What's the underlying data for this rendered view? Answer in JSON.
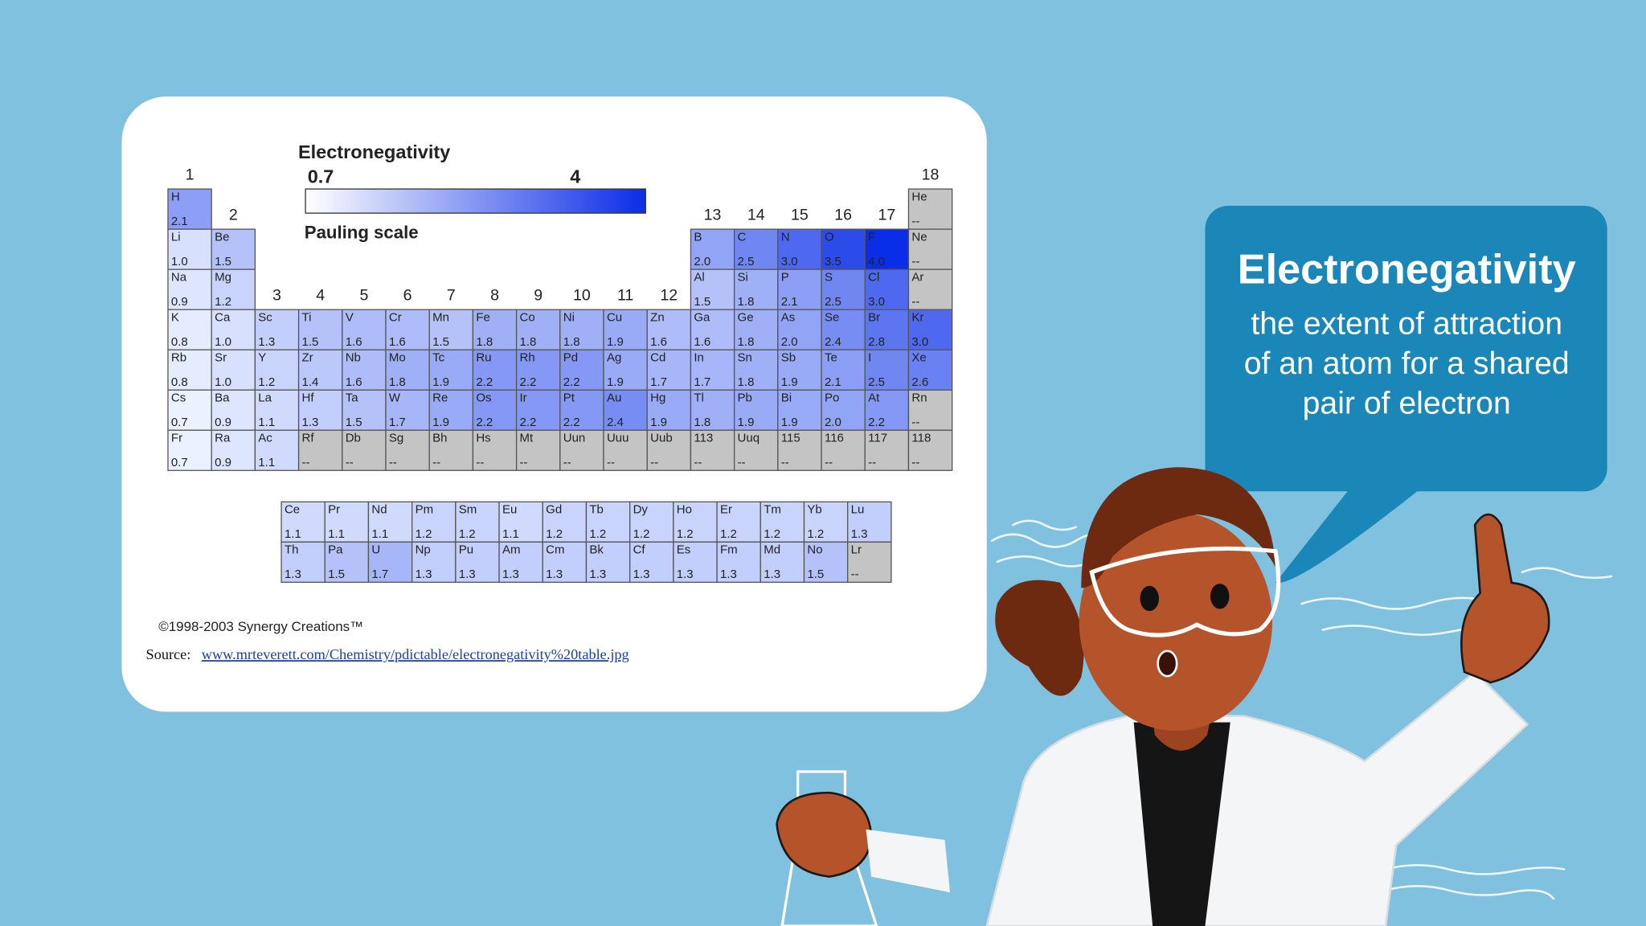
{
  "table_figure": {
    "legend": {
      "title": "Electronegativity",
      "min": 0.7,
      "max": 4,
      "scale": "Pauling scale"
    },
    "groups": [
      1,
      2,
      3,
      4,
      5,
      6,
      7,
      8,
      9,
      10,
      11,
      12,
      13,
      14,
      15,
      16,
      17,
      18
    ],
    "main_rows": [
      [
        {
          "symbol": "H",
          "value": "2.1"
        },
        {
          "symbol": "He",
          "value": "--"
        }
      ],
      [
        {
          "symbol": "Li",
          "value": "1.0"
        },
        {
          "symbol": "Be",
          "value": "1.5"
        },
        {
          "symbol": "B",
          "value": "2.0"
        },
        {
          "symbol": "C",
          "value": "2.5"
        },
        {
          "symbol": "N",
          "value": "3.0"
        },
        {
          "symbol": "O",
          "value": "3.5"
        },
        {
          "symbol": "F",
          "value": "4.0"
        },
        {
          "symbol": "Ne",
          "value": "--"
        }
      ],
      [
        {
          "symbol": "Na",
          "value": "0.9"
        },
        {
          "symbol": "Mg",
          "value": "1.2"
        },
        {
          "symbol": "Al",
          "value": "1.5"
        },
        {
          "symbol": "Si",
          "value": "1.8"
        },
        {
          "symbol": "P",
          "value": "2.1"
        },
        {
          "symbol": "S",
          "value": "2.5"
        },
        {
          "symbol": "Cl",
          "value": "3.0"
        },
        {
          "symbol": "Ar",
          "value": "--"
        }
      ],
      [
        {
          "symbol": "K",
          "value": "0.8"
        },
        {
          "symbol": "Ca",
          "value": "1.0"
        },
        {
          "symbol": "Sc",
          "value": "1.3"
        },
        {
          "symbol": "Ti",
          "value": "1.5"
        },
        {
          "symbol": "V",
          "value": "1.6"
        },
        {
          "symbol": "Cr",
          "value": "1.6"
        },
        {
          "symbol": "Mn",
          "value": "1.5"
        },
        {
          "symbol": "Fe",
          "value": "1.8"
        },
        {
          "symbol": "Co",
          "value": "1.8"
        },
        {
          "symbol": "Ni",
          "value": "1.8"
        },
        {
          "symbol": "Cu",
          "value": "1.9"
        },
        {
          "symbol": "Zn",
          "value": "1.6"
        },
        {
          "symbol": "Ga",
          "value": "1.6"
        },
        {
          "symbol": "Ge",
          "value": "1.8"
        },
        {
          "symbol": "As",
          "value": "2.0"
        },
        {
          "symbol": "Se",
          "value": "2.4"
        },
        {
          "symbol": "Br",
          "value": "2.8"
        },
        {
          "symbol": "Kr",
          "value": "3.0"
        }
      ],
      [
        {
          "symbol": "Rb",
          "value": "0.8"
        },
        {
          "symbol": "Sr",
          "value": "1.0"
        },
        {
          "symbol": "Y",
          "value": "1.2"
        },
        {
          "symbol": "Zr",
          "value": "1.4"
        },
        {
          "symbol": "Nb",
          "value": "1.6"
        },
        {
          "symbol": "Mo",
          "value": "1.8"
        },
        {
          "symbol": "Tc",
          "value": "1.9"
        },
        {
          "symbol": "Ru",
          "value": "2.2"
        },
        {
          "symbol": "Rh",
          "value": "2.2"
        },
        {
          "symbol": "Pd",
          "value": "2.2"
        },
        {
          "symbol": "Ag",
          "value": "1.9"
        },
        {
          "symbol": "Cd",
          "value": "1.7"
        },
        {
          "symbol": "In",
          "value": "1.7"
        },
        {
          "symbol": "Sn",
          "value": "1.8"
        },
        {
          "symbol": "Sb",
          "value": "1.9"
        },
        {
          "symbol": "Te",
          "value": "2.1"
        },
        {
          "symbol": "I",
          "value": "2.5"
        },
        {
          "symbol": "Xe",
          "value": "2.6"
        }
      ],
      [
        {
          "symbol": "Cs",
          "value": "0.7"
        },
        {
          "symbol": "Ba",
          "value": "0.9"
        },
        {
          "symbol": "La",
          "value": "1.1"
        },
        {
          "symbol": "Hf",
          "value": "1.3"
        },
        {
          "symbol": "Ta",
          "value": "1.5"
        },
        {
          "symbol": "W",
          "value": "1.7"
        },
        {
          "symbol": "Re",
          "value": "1.9"
        },
        {
          "symbol": "Os",
          "value": "2.2"
        },
        {
          "symbol": "Ir",
          "value": "2.2"
        },
        {
          "symbol": "Pt",
          "value": "2.2"
        },
        {
          "symbol": "Au",
          "value": "2.4"
        },
        {
          "symbol": "Hg",
          "value": "1.9"
        },
        {
          "symbol": "Tl",
          "value": "1.8"
        },
        {
          "symbol": "Pb",
          "value": "1.9"
        },
        {
          "symbol": "Bi",
          "value": "1.9"
        },
        {
          "symbol": "Po",
          "value": "2.0"
        },
        {
          "symbol": "At",
          "value": "2.2"
        },
        {
          "symbol": "Rn",
          "value": "--"
        }
      ],
      [
        {
          "symbol": "Fr",
          "value": "0.7"
        },
        {
          "symbol": "Ra",
          "value": "0.9"
        },
        {
          "symbol": "Ac",
          "value": "1.1"
        },
        {
          "symbol": "Rf",
          "value": "--"
        },
        {
          "symbol": "Db",
          "value": "--"
        },
        {
          "symbol": "Sg",
          "value": "--"
        },
        {
          "symbol": "Bh",
          "value": "--"
        },
        {
          "symbol": "Hs",
          "value": "--"
        },
        {
          "symbol": "Mt",
          "value": "--"
        },
        {
          "symbol": "Uun",
          "value": "--"
        },
        {
          "symbol": "Uuu",
          "value": "--"
        },
        {
          "symbol": "Uub",
          "value": "--"
        },
        {
          "symbol": "113",
          "value": "--"
        },
        {
          "symbol": "Uuq",
          "value": "--"
        },
        {
          "symbol": "115",
          "value": "--"
        },
        {
          "symbol": "116",
          "value": "--"
        },
        {
          "symbol": "117",
          "value": "--"
        },
        {
          "symbol": "118",
          "value": "--"
        }
      ]
    ],
    "f_rows": [
      [
        {
          "symbol": "Ce",
          "value": "1.1"
        },
        {
          "symbol": "Pr",
          "value": "1.1"
        },
        {
          "symbol": "Nd",
          "value": "1.1"
        },
        {
          "symbol": "Pm",
          "value": "1.2"
        },
        {
          "symbol": "Sm",
          "value": "1.2"
        },
        {
          "symbol": "Eu",
          "value": "1.1"
        },
        {
          "symbol": "Gd",
          "value": "1.2"
        },
        {
          "symbol": "Tb",
          "value": "1.2"
        },
        {
          "symbol": "Dy",
          "value": "1.2"
        },
        {
          "symbol": "Ho",
          "value": "1.2"
        },
        {
          "symbol": "Er",
          "value": "1.2"
        },
        {
          "symbol": "Tm",
          "value": "1.2"
        },
        {
          "symbol": "Yb",
          "value": "1.2"
        },
        {
          "symbol": "Lu",
          "value": "1.3"
        }
      ],
      [
        {
          "symbol": "Th",
          "value": "1.3"
        },
        {
          "symbol": "Pa",
          "value": "1.5"
        },
        {
          "symbol": "U",
          "value": "1.7"
        },
        {
          "symbol": "Np",
          "value": "1.3"
        },
        {
          "symbol": "Pu",
          "value": "1.3"
        },
        {
          "symbol": "Am",
          "value": "1.3"
        },
        {
          "symbol": "Cm",
          "value": "1.3"
        },
        {
          "symbol": "Bk",
          "value": "1.3"
        },
        {
          "symbol": "Cf",
          "value": "1.3"
        },
        {
          "symbol": "Es",
          "value": "1.3"
        },
        {
          "symbol": "Fm",
          "value": "1.3"
        },
        {
          "symbol": "Md",
          "value": "1.3"
        },
        {
          "symbol": "No",
          "value": "1.5"
        },
        {
          "symbol": "Lr",
          "value": "--"
        }
      ]
    ],
    "copyright": "©1998-2003 Synergy Creations™",
    "source_label": "Source:",
    "source_url": "www.mrteverett.com/Chemistry/pdictable/electronegativity%20table.jpg"
  },
  "callout": {
    "title": "Electronegativity",
    "lines": [
      "the extent of attraction",
      "of an atom for a shared",
      "pair of electron"
    ]
  }
}
